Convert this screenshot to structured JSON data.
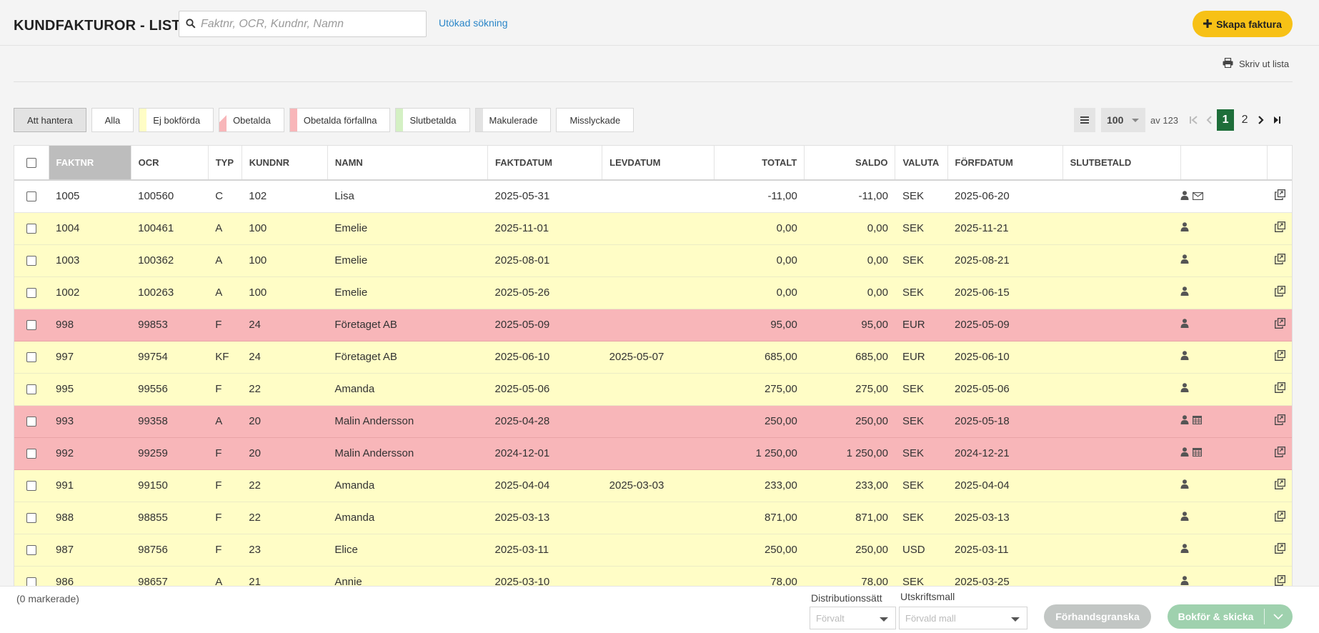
{
  "header": {
    "title": "KUNDFAKTUROR - LISTA",
    "search_placeholder": "Faktnr, OCR, Kundnr, Namn",
    "search_value": "",
    "advanced_search": "Utökad sökning",
    "create_button": "Skapa faktura",
    "print_list": "Skriv ut lista"
  },
  "filters": [
    {
      "label": "Att hantera",
      "active": true,
      "swatch": ""
    },
    {
      "label": "Alla",
      "active": false,
      "swatch": ""
    },
    {
      "label": "Ej bokförda",
      "active": false,
      "swatch": "#fffdc6"
    },
    {
      "label": "Obetalda",
      "active": false,
      "swatch": "#f8b6b9"
    },
    {
      "label": "Obetalda förfallna",
      "active": false,
      "swatch": "#f8b6b9"
    },
    {
      "label": "Slutbetalda",
      "active": false,
      "swatch": "#d4f0c4"
    },
    {
      "label": "Makulerade",
      "active": false,
      "swatch": "#e2e2e2"
    },
    {
      "label": "Misslyckade",
      "active": false,
      "swatch": ""
    }
  ],
  "pagination": {
    "per_page": "100",
    "of_total": "av 123",
    "pages": [
      "1",
      "2"
    ],
    "current_page": "1"
  },
  "table": {
    "columns": [
      "FAKTNR",
      "OCR",
      "TYP",
      "KUNDNR",
      "NAMN",
      "FAKTDATUM",
      "LEVDATUM",
      "TOTALT",
      "SALDO",
      "VALUTA",
      "FÖRFDATUM",
      "SLUTBETALD"
    ],
    "rows": [
      {
        "faktnr": "1005",
        "ocr": "100560",
        "typ": "C",
        "kundnr": "102",
        "namn": "Lisa",
        "faktdatum": "2025-05-31",
        "levdatum": "",
        "totalt": "-11,00",
        "saldo": "-11,00",
        "valuta": "SEK",
        "forfdatum": "2025-06-20",
        "slutbetald": "",
        "status": "white",
        "icons": [
          "person-icon",
          "envelope-icon"
        ]
      },
      {
        "faktnr": "1004",
        "ocr": "100461",
        "typ": "A",
        "kundnr": "100",
        "namn": "Emelie",
        "faktdatum": "2025-11-01",
        "levdatum": "",
        "totalt": "0,00",
        "saldo": "0,00",
        "valuta": "SEK",
        "forfdatum": "2025-11-21",
        "slutbetald": "",
        "status": "yellow",
        "icons": [
          "person-icon"
        ]
      },
      {
        "faktnr": "1003",
        "ocr": "100362",
        "typ": "A",
        "kundnr": "100",
        "namn": "Emelie",
        "faktdatum": "2025-08-01",
        "levdatum": "",
        "totalt": "0,00",
        "saldo": "0,00",
        "valuta": "SEK",
        "forfdatum": "2025-08-21",
        "slutbetald": "",
        "status": "yellow",
        "icons": [
          "person-icon"
        ]
      },
      {
        "faktnr": "1002",
        "ocr": "100263",
        "typ": "A",
        "kundnr": "100",
        "namn": "Emelie",
        "faktdatum": "2025-05-26",
        "levdatum": "",
        "totalt": "0,00",
        "saldo": "0,00",
        "valuta": "SEK",
        "forfdatum": "2025-06-15",
        "slutbetald": "",
        "status": "yellow",
        "icons": [
          "person-icon"
        ]
      },
      {
        "faktnr": "998",
        "ocr": "99853",
        "typ": "F",
        "kundnr": "24",
        "namn": "Företaget AB",
        "faktdatum": "2025-05-09",
        "levdatum": "",
        "totalt": "95,00",
        "saldo": "95,00",
        "valuta": "EUR",
        "forfdatum": "2025-05-09",
        "slutbetald": "",
        "status": "red",
        "icons": [
          "person-icon"
        ]
      },
      {
        "faktnr": "997",
        "ocr": "99754",
        "typ": "KF",
        "kundnr": "24",
        "namn": "Företaget AB",
        "faktdatum": "2025-06-10",
        "levdatum": "2025-05-07",
        "totalt": "685,00",
        "saldo": "685,00",
        "valuta": "EUR",
        "forfdatum": "2025-06-10",
        "slutbetald": "",
        "status": "yellow",
        "icons": [
          "person-icon"
        ]
      },
      {
        "faktnr": "995",
        "ocr": "99556",
        "typ": "F",
        "kundnr": "22",
        "namn": "Amanda",
        "faktdatum": "2025-05-06",
        "levdatum": "",
        "totalt": "275,00",
        "saldo": "275,00",
        "valuta": "SEK",
        "forfdatum": "2025-05-06",
        "slutbetald": "",
        "status": "yellow",
        "icons": [
          "person-icon"
        ]
      },
      {
        "faktnr": "993",
        "ocr": "99358",
        "typ": "A",
        "kundnr": "20",
        "namn": "Malin Andersson",
        "faktdatum": "2025-04-28",
        "levdatum": "",
        "totalt": "250,00",
        "saldo": "250,00",
        "valuta": "SEK",
        "forfdatum": "2025-05-18",
        "slutbetald": "",
        "status": "red",
        "icons": [
          "person-icon",
          "calendar-icon"
        ]
      },
      {
        "faktnr": "992",
        "ocr": "99259",
        "typ": "F",
        "kundnr": "20",
        "namn": "Malin Andersson",
        "faktdatum": "2024-12-01",
        "levdatum": "",
        "totalt": "1 250,00",
        "saldo": "1 250,00",
        "valuta": "SEK",
        "forfdatum": "2024-12-21",
        "slutbetald": "",
        "status": "red",
        "icons": [
          "person-icon",
          "calendar-icon"
        ]
      },
      {
        "faktnr": "991",
        "ocr": "99150",
        "typ": "F",
        "kundnr": "22",
        "namn": "Amanda",
        "faktdatum": "2025-04-04",
        "levdatum": "2025-03-03",
        "totalt": "233,00",
        "saldo": "233,00",
        "valuta": "SEK",
        "forfdatum": "2025-04-04",
        "slutbetald": "",
        "status": "yellow",
        "icons": [
          "person-icon"
        ]
      },
      {
        "faktnr": "988",
        "ocr": "98855",
        "typ": "F",
        "kundnr": "22",
        "namn": "Amanda",
        "faktdatum": "2025-03-13",
        "levdatum": "",
        "totalt": "871,00",
        "saldo": "871,00",
        "valuta": "SEK",
        "forfdatum": "2025-03-13",
        "slutbetald": "",
        "status": "yellow",
        "icons": [
          "person-icon"
        ]
      },
      {
        "faktnr": "987",
        "ocr": "98756",
        "typ": "F",
        "kundnr": "23",
        "namn": "Elice",
        "faktdatum": "2025-03-11",
        "levdatum": "",
        "totalt": "250,00",
        "saldo": "250,00",
        "valuta": "USD",
        "forfdatum": "2025-03-11",
        "slutbetald": "",
        "status": "yellow",
        "icons": [
          "person-icon"
        ]
      },
      {
        "faktnr": "986",
        "ocr": "98657",
        "typ": "A",
        "kundnr": "21",
        "namn": "Annie",
        "faktdatum": "2025-03-10",
        "levdatum": "",
        "totalt": "78,00",
        "saldo": "78,00",
        "valuta": "SEK",
        "forfdatum": "2025-03-25",
        "slutbetald": "",
        "status": "yellow",
        "icons": [
          "person-icon"
        ]
      }
    ]
  },
  "footer": {
    "marked": "(0 markerade)",
    "distribution_label": "Distributionssätt",
    "distribution_value": "Förvalt",
    "template_label": "Utskriftsmall",
    "template_value": "Förvald mall",
    "preview_button": "Förhandsgranska",
    "book_send_button": "Bokför & skicka"
  },
  "colors": {
    "accent_yellow": "#f7c116",
    "pager_current": "#1e6e3a",
    "link": "#2a86c8",
    "row_unbooked": "#fffdc6",
    "row_overdue": "#f8b6b9"
  }
}
